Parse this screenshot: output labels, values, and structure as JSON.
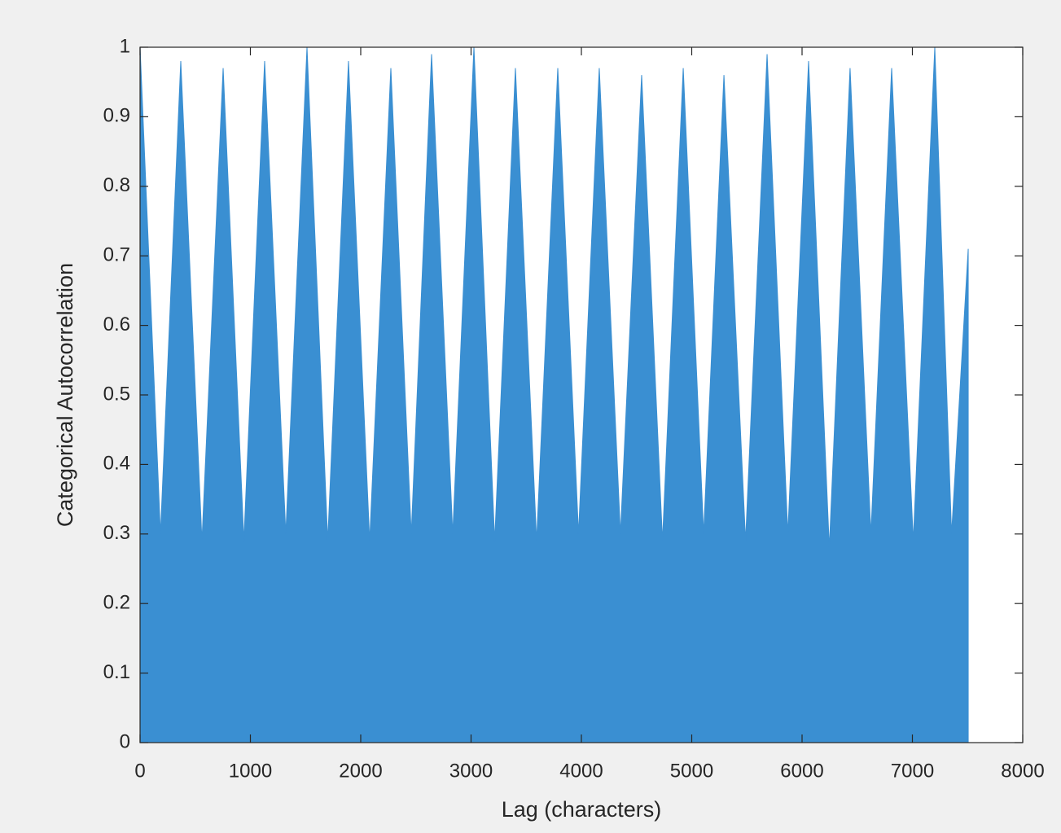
{
  "chart_data": {
    "type": "area",
    "x_label": "Lag (characters)",
    "y_label": "Categorical Autocorrelation",
    "color": "#3a8fd2",
    "x": [
      0,
      185,
      369,
      561,
      753,
      941,
      1129,
      1321,
      1513,
      1701,
      1889,
      2081,
      2273,
      2458,
      2642,
      2834,
      3026,
      3214,
      3402,
      3594,
      3786,
      3974,
      4162,
      4354,
      4546,
      4735,
      4923,
      5108,
      5292,
      5488,
      5683,
      5871,
      6059,
      6247,
      6435,
      6624,
      6812,
      7008,
      7203,
      7355,
      7506
    ],
    "values": [
      1,
      0.3,
      0.98,
      0.29,
      0.97,
      0.29,
      0.98,
      0.3,
      1,
      0.29,
      0.98,
      0.29,
      0.97,
      0.3,
      0.99,
      0.3,
      1,
      0.29,
      0.97,
      0.29,
      0.97,
      0.3,
      0.97,
      0.3,
      0.96,
      0.29,
      0.97,
      0.3,
      0.96,
      0.29,
      0.99,
      0.3,
      0.98,
      0.28,
      0.97,
      0.3,
      0.97,
      0.29,
      1,
      0.3,
      0.71
    ],
    "xlim": [
      0,
      8000
    ],
    "ylim": [
      0,
      1
    ],
    "xticks": [
      0,
      1000,
      2000,
      3000,
      4000,
      5000,
      6000,
      7000,
      8000
    ],
    "yticks": [
      0,
      0.1,
      0.2,
      0.3,
      0.4,
      0.5,
      0.6,
      0.7,
      0.8,
      0.9,
      1
    ],
    "grid": false
  }
}
